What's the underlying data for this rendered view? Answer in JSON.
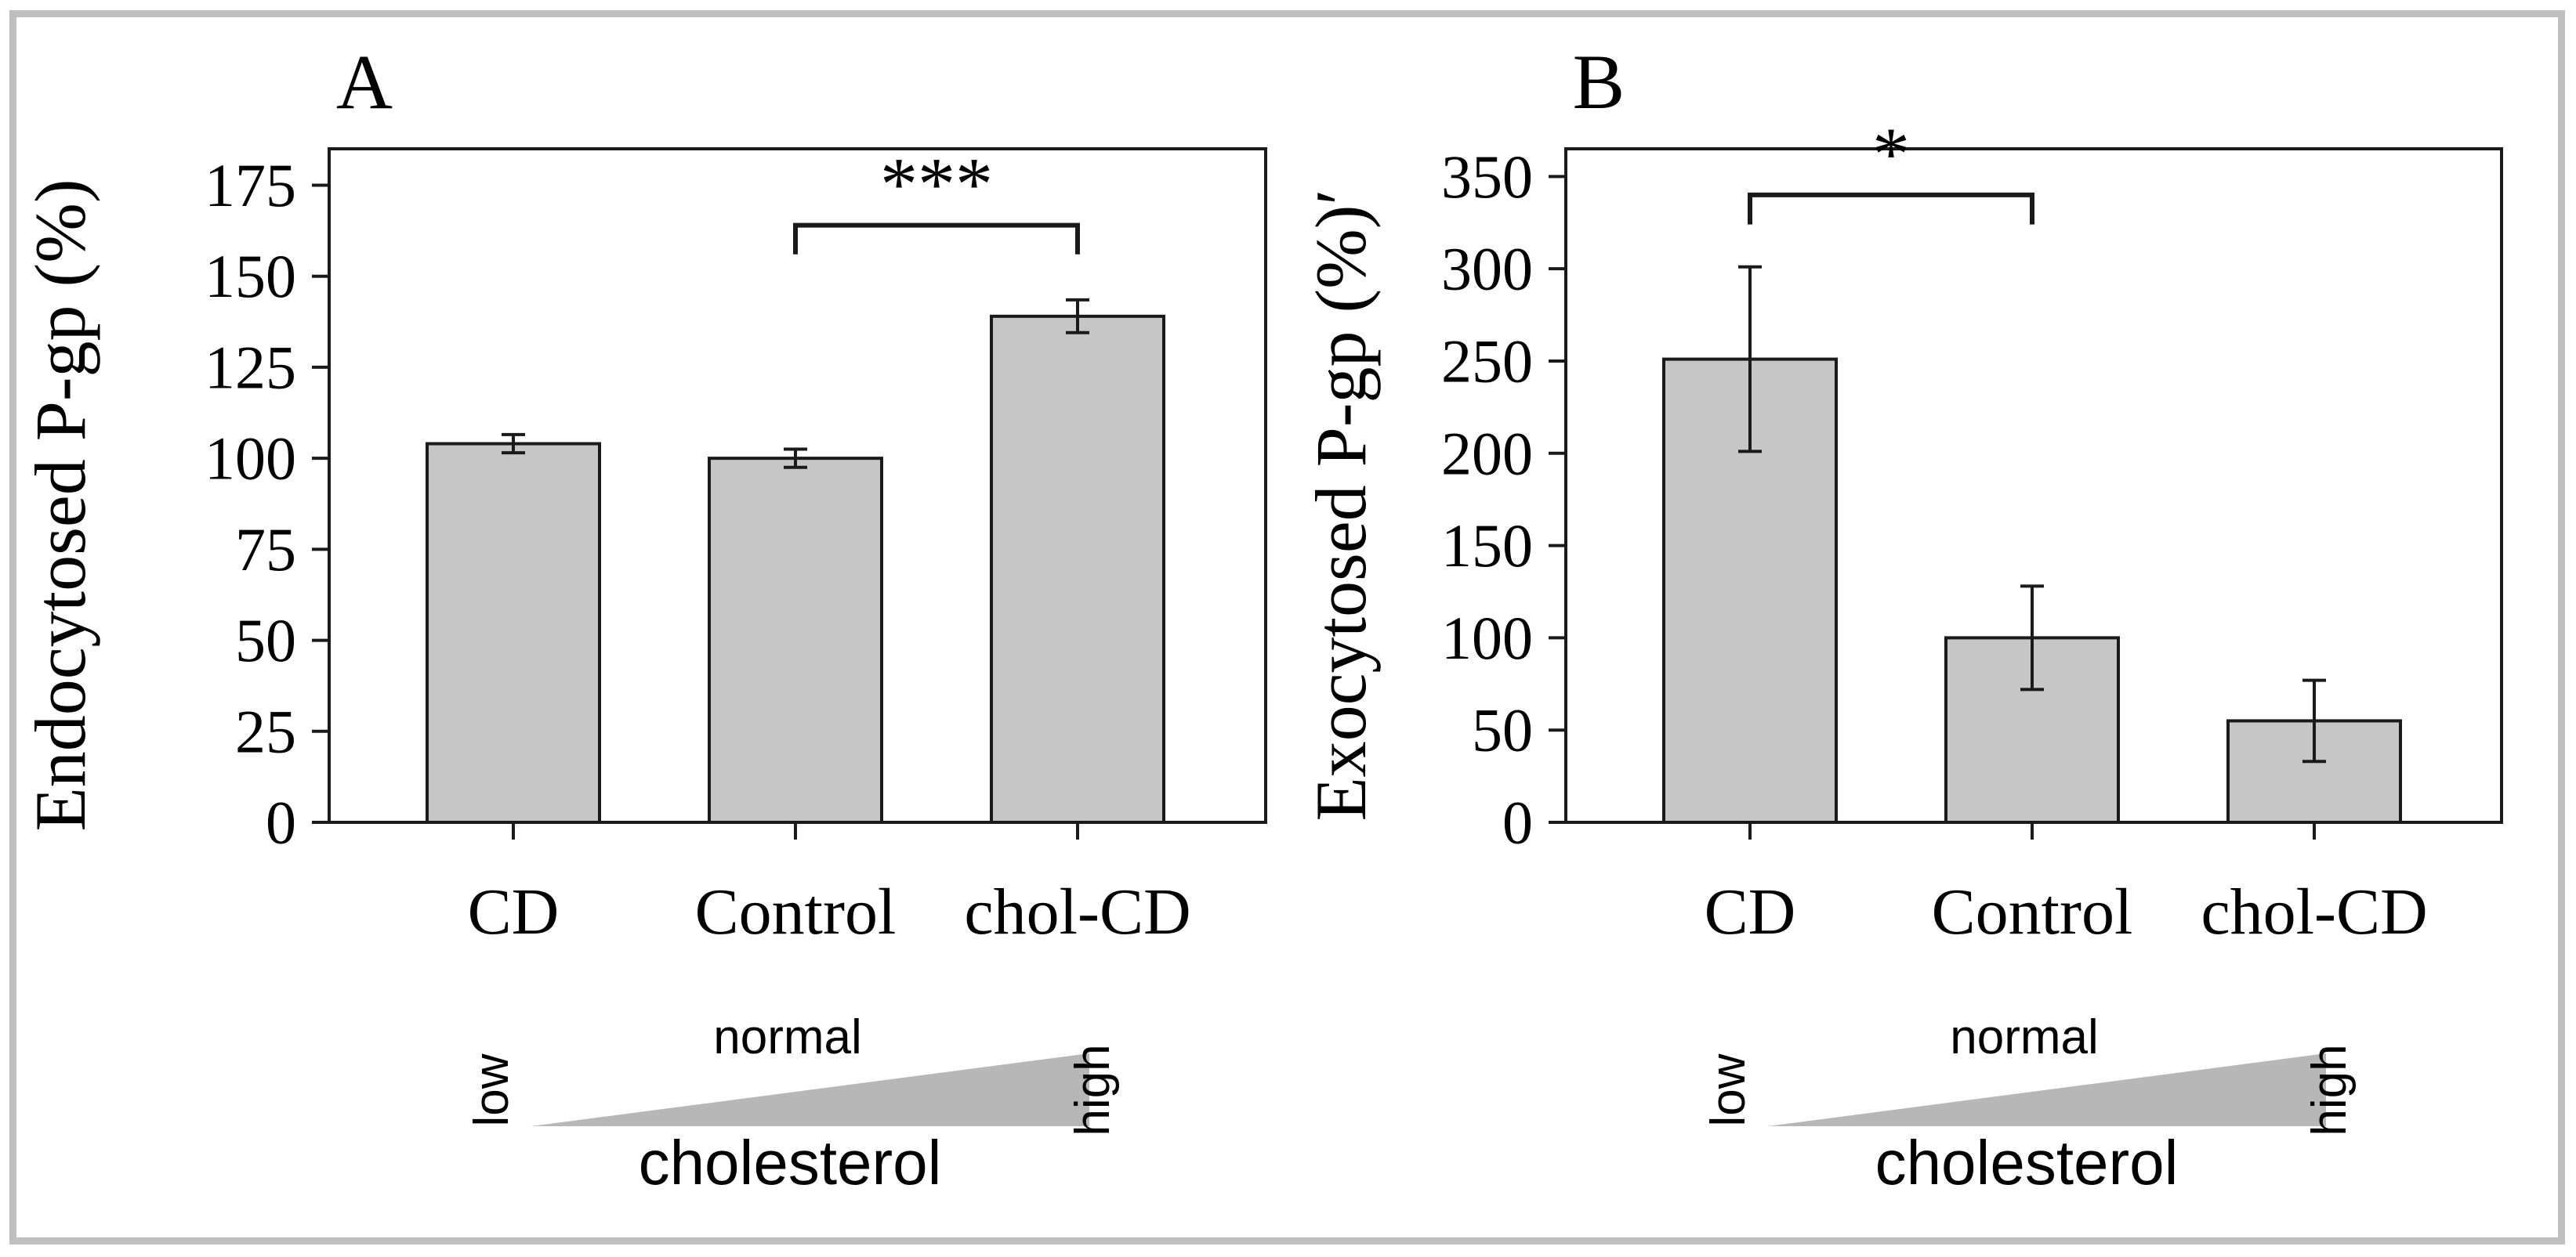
{
  "figure": {
    "background": "#ffffff",
    "frame_color": "#bfbfbf",
    "bar_fill": "#c6c6c6",
    "bar_stroke": "#1a1a1a",
    "error_color": "#1a1a1a",
    "axis_color": "#1a1a1a",
    "triangle_fill": "#b7b7b7",
    "text_color": "#000000"
  },
  "chart_data": [
    {
      "type": "bar",
      "panel_label": "A",
      "title": "",
      "xlabel": "",
      "ylabel": "Endocytosed P-gp (%)",
      "categories": [
        "CD",
        "Control",
        "chol-CD"
      ],
      "values": [
        104,
        100,
        139
      ],
      "errors": [
        2.5,
        2.5,
        4.5
      ],
      "ylim": [
        0,
        185
      ],
      "yticks": [
        0,
        25,
        50,
        75,
        100,
        125,
        150,
        175
      ],
      "grid": false,
      "legend": null,
      "significance": {
        "between": [
          "Control",
          "chol-CD"
        ],
        "label": "***",
        "bar_value": 164,
        "arm_value": 156
      },
      "gradient_annotation": {
        "left": "low",
        "middle": "normal",
        "right": "high",
        "caption": "cholesterol"
      }
    },
    {
      "type": "bar",
      "panel_label": "B",
      "title": "",
      "xlabel": "",
      "ylabel": "Exocytosed P-gp (%)ʹ",
      "categories": [
        "CD",
        "Control",
        "chol-CD"
      ],
      "values": [
        251,
        100,
        55
      ],
      "errors": [
        50,
        28,
        22
      ],
      "ylim": [
        0,
        365
      ],
      "yticks": [
        0,
        50,
        100,
        150,
        200,
        250,
        300,
        350
      ],
      "grid": false,
      "legend": null,
      "significance": {
        "between": [
          "CD",
          "Control"
        ],
        "label": "*",
        "bar_value": 340,
        "arm_value": 324
      },
      "gradient_annotation": {
        "left": "low",
        "middle": "normal",
        "right": "high",
        "caption": "cholesterol"
      }
    }
  ]
}
